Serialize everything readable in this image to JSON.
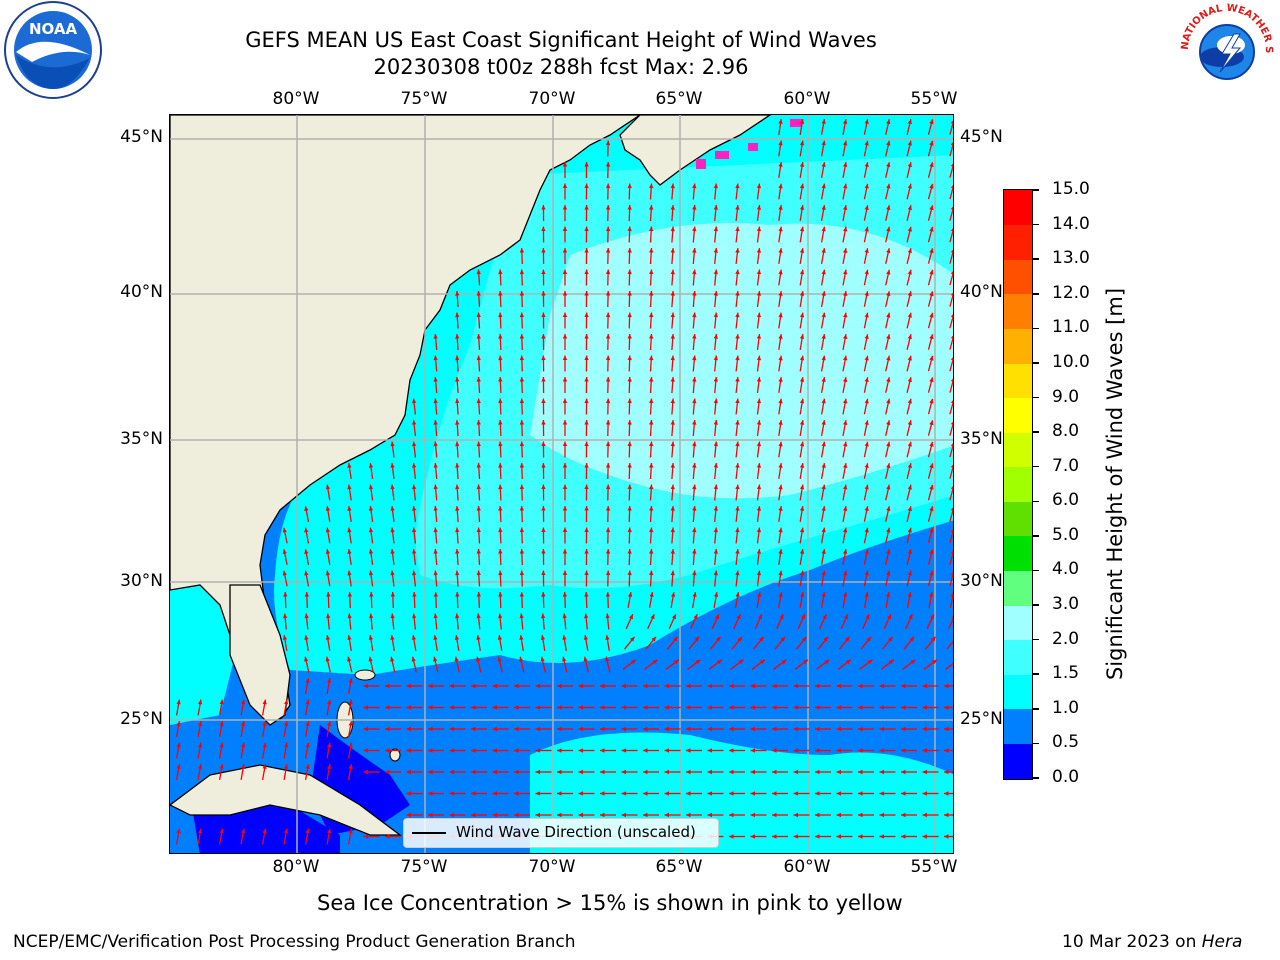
{
  "title": {
    "line1": "GEFS MEAN US East Coast Significant Height of Wind Waves",
    "line2": "20230308 t00z 288h fcst   Max: 2.96"
  },
  "axes": {
    "lon_labels": [
      "80°W",
      "75°W",
      "70°W",
      "65°W",
      "60°W",
      "55°W"
    ],
    "lat_labels": [
      "45°N",
      "40°N",
      "35°N",
      "30°N",
      "25°N"
    ]
  },
  "colorbar": {
    "label": "Significant Height of Wind Waves [m]",
    "ticks": [
      "0.0",
      "0.5",
      "1.0",
      "1.5",
      "2.0",
      "3.0",
      "4.0",
      "5.0",
      "6.0",
      "7.0",
      "8.0",
      "9.0",
      "10.0",
      "11.0",
      "12.0",
      "13.0",
      "14.0",
      "15.0"
    ],
    "colors": [
      "#0000ff",
      "#0080ff",
      "#00ffff",
      "#40ffff",
      "#a0ffff",
      "#60ff80",
      "#00e000",
      "#60e000",
      "#a0ff00",
      "#d0ff00",
      "#ffff00",
      "#ffe000",
      "#ffb000",
      "#ff8000",
      "#ff5000",
      "#ff2000",
      "#ff0000"
    ]
  },
  "legend": {
    "label": "Wind Wave Direction (unscaled)"
  },
  "note": "Sea Ice Concentration > 15% is shown in pink to yellow",
  "footer": {
    "left": "NCEP/EMC/Verification Post Processing Product Generation Branch",
    "right_date": "10 Mar 2023 on ",
    "right_host": "Hera"
  },
  "logos": {
    "noaa": "NOAA",
    "nws": "NATIONAL WEATHER SERVICE"
  },
  "colors": {
    "land": "#efeddb",
    "arrow": "#ff0000",
    "grid": "#b0b0b0",
    "ice": "#ff20c0"
  }
}
